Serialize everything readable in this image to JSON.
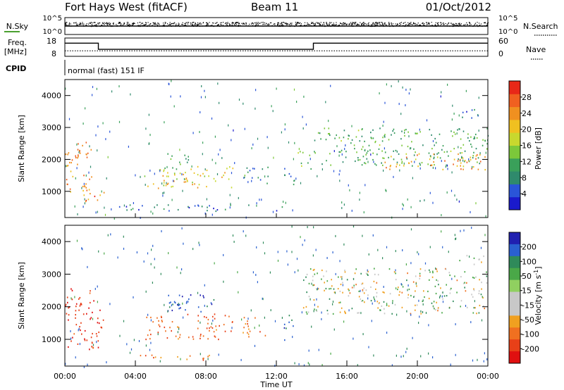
{
  "header": {
    "title": "Fort Hays West (fitACF)",
    "beam": "Beam 11",
    "date": "01/Oct/2012"
  },
  "chart_data": [
    {
      "type": "line",
      "panel": "noise",
      "left_label": "N.Sky",
      "right_label": "N.Search",
      "left_ticks": [
        "10^5",
        "10^0"
      ],
      "right_ticks": [
        "10^5",
        "10^0"
      ],
      "x_range": [
        0,
        24
      ],
      "series": [
        {
          "name": "N.Sky",
          "style": "dots",
          "y_level": "near 10^5"
        },
        {
          "name": "N.Search",
          "style": "dotted",
          "y_level": "near 10^5"
        }
      ]
    },
    {
      "type": "line",
      "panel": "frequency",
      "left_label": "Freq.",
      "left_unit": "[MHz]",
      "right_label": "Nave",
      "left_ticks": [
        18,
        8
      ],
      "right_ticks": [
        60,
        0
      ],
      "ylim_left": [
        8,
        18
      ],
      "ylim_right": [
        0,
        60
      ],
      "series": [
        {
          "name": "Freq.",
          "x": [
            0,
            1.9,
            1.9,
            14.1,
            14.1,
            24
          ],
          "y": [
            15.2,
            15.2,
            11.8,
            11.8,
            15.2,
            15.2
          ]
        },
        {
          "name": "Nave",
          "x": [
            0,
            24
          ],
          "y": [
            18,
            18
          ]
        }
      ]
    },
    {
      "type": "table",
      "panel": "cpid",
      "label": "CPID",
      "text": "normal (fast) 151 IF"
    },
    {
      "type": "heatmap",
      "panel": "power",
      "ylabel": "Slant Range [km]",
      "y_ticks": [
        1000,
        2000,
        3000,
        4000
      ],
      "ylim": [
        180,
        4500
      ],
      "colorbar": {
        "label": "Power [dB]",
        "ticks": [
          4,
          8,
          12,
          16,
          20,
          24,
          28
        ],
        "range": [
          0,
          32
        ],
        "colors": [
          "#1a1acc",
          "#2a55d8",
          "#2f8a6c",
          "#3aa05a",
          "#7cc83a",
          "#c8d82e",
          "#f0c020",
          "#f09020",
          "#f06020",
          "#e82818"
        ]
      },
      "regions": [
        {
          "x": [
            0.0,
            1.6
          ],
          "y": [
            900,
            2600
          ],
          "level": 24
        },
        {
          "x": [
            1.0,
            2.2
          ],
          "y": [
            700,
            1100
          ],
          "level": 26
        },
        {
          "x": [
            4.5,
            9.5
          ],
          "y": [
            1100,
            1800
          ],
          "level": 20
        },
        {
          "x": [
            5.5,
            7.0
          ],
          "y": [
            1700,
            2200
          ],
          "level": 10
        },
        {
          "x": [
            10.0,
            11.5
          ],
          "y": [
            1200,
            1800
          ],
          "level": 8
        },
        {
          "x": [
            12.4,
            13.0
          ],
          "y": [
            1000,
            1800
          ],
          "level": 10
        },
        {
          "x": [
            13.2,
            14.0
          ],
          "y": [
            1700,
            2300
          ],
          "level": 14
        },
        {
          "x": [
            14.0,
            24.0
          ],
          "y": [
            1800,
            3000
          ],
          "level": 12
        },
        {
          "x": [
            18.0,
            24.0
          ],
          "y": [
            1700,
            2200
          ],
          "level": 24
        },
        {
          "x": [
            22.3,
            23.8
          ],
          "y": [
            3300,
            3600
          ],
          "level": 6
        },
        {
          "x": [
            3.0,
            12.5
          ],
          "y": [
            400,
            600
          ],
          "level": 6
        }
      ]
    },
    {
      "type": "heatmap",
      "panel": "velocity",
      "ylabel": "Slant Range [km]",
      "xlabel": "Time UT",
      "x_ticks": [
        "00:00",
        "04:00",
        "08:00",
        "12:00",
        "16:00",
        "20:00",
        "00:00"
      ],
      "y_ticks": [
        1000,
        2000,
        3000,
        4000
      ],
      "ylim": [
        180,
        4500
      ],
      "colorbar": {
        "label": "Velocity [m s^-1]",
        "ticks": [
          200,
          100,
          50,
          15,
          -15,
          -50,
          -100,
          -200
        ],
        "colors": [
          "#2020b0",
          "#2a60d0",
          "#2f8a5a",
          "#4aa848",
          "#90d060",
          "#c8c8c8",
          "#c8c8c8",
          "#f0a020",
          "#f07020",
          "#e84018",
          "#e01010"
        ]
      },
      "regions": [
        {
          "x": [
            0.0,
            2.2
          ],
          "y": [
            700,
            2600
          ],
          "vel": -150
        },
        {
          "x": [
            4.5,
            9.5
          ],
          "y": [
            1000,
            1800
          ],
          "vel": -100
        },
        {
          "x": [
            5.5,
            8.5
          ],
          "y": [
            1800,
            2400
          ],
          "vel": 150
        },
        {
          "x": [
            10.0,
            11.5
          ],
          "y": [
            1100,
            1700
          ],
          "vel": -80
        },
        {
          "x": [
            12.4,
            13.0
          ],
          "y": [
            1000,
            1800
          ],
          "vel": 120
        },
        {
          "x": [
            13.5,
            24.0
          ],
          "y": [
            1800,
            3200
          ],
          "vel": 0
        },
        {
          "x": [
            3.5,
            8.5
          ],
          "y": [
            380,
            560
          ],
          "vel": -60
        },
        {
          "x": [
            22.3,
            23.8
          ],
          "y": [
            3300,
            3600
          ],
          "vel": 0
        }
      ]
    }
  ]
}
